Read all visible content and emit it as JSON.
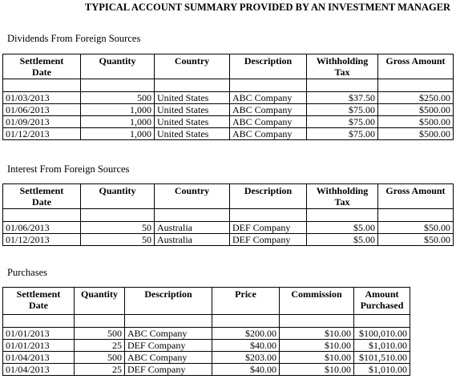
{
  "title": "TYPICAL ACCOUNT SUMMARY PROVIDED BY AN INVESTMENT MANAGER",
  "sections": [
    {
      "heading": "Dividends From Foreign Sources",
      "columns": [
        [
          "Settlement",
          "Date"
        ],
        [
          "Quantity"
        ],
        [
          "Country"
        ],
        [
          "Description"
        ],
        [
          "Withholding",
          "Tax"
        ],
        [
          "Gross Amount"
        ]
      ],
      "rows": [
        [
          "01/03/2013",
          "500",
          "United States",
          "ABC Company",
          "$37.50",
          "$250.00"
        ],
        [
          "01/06/2013",
          "1,000",
          "United States",
          "ABC Company",
          "$75.00",
          "$500.00"
        ],
        [
          "01/09/2013",
          "1,000",
          "United States",
          "ABC Company",
          "$75.00",
          "$500.00"
        ],
        [
          "01/12/2013",
          "1,000",
          "United States",
          "ABC Company",
          "$75.00",
          "$500.00"
        ]
      ]
    },
    {
      "heading": "Interest From Foreign Sources",
      "columns": [
        [
          "Settlement",
          "Date"
        ],
        [
          "Quantity"
        ],
        [
          "Country"
        ],
        [
          "Description"
        ],
        [
          "Withholding",
          "Tax"
        ],
        [
          "Gross Amount"
        ]
      ],
      "rows": [
        [
          "01/06/2013",
          "50",
          "Australia",
          "DEF Company",
          "$5.00",
          "$50.00"
        ],
        [
          "01/12/2013",
          "50",
          "Australia",
          "DEF Company",
          "$5.00",
          "$50.00"
        ]
      ]
    },
    {
      "heading": "Purchases",
      "columns": [
        [
          "Settlement",
          "Date"
        ],
        [
          "Quantity"
        ],
        [
          "Description"
        ],
        [
          "Price"
        ],
        [
          "Commission"
        ],
        [
          "Amount",
          "Purchased"
        ]
      ],
      "rows": [
        [
          "01/01/2013",
          "500",
          "ABC Company",
          "$200.00",
          "$10.00",
          "$100,010.00"
        ],
        [
          "01/01/2013",
          "25",
          "DEF Company",
          "$40.00",
          "$10.00",
          "$1,010.00"
        ],
        [
          "01/04/2013",
          "500",
          "ABC Company",
          "$203.00",
          "$10.00",
          "$101,510.00"
        ],
        [
          "01/04/2013",
          "25",
          "DEF Company",
          "$40.00",
          "$10.00",
          "$1,010.00"
        ]
      ]
    }
  ]
}
